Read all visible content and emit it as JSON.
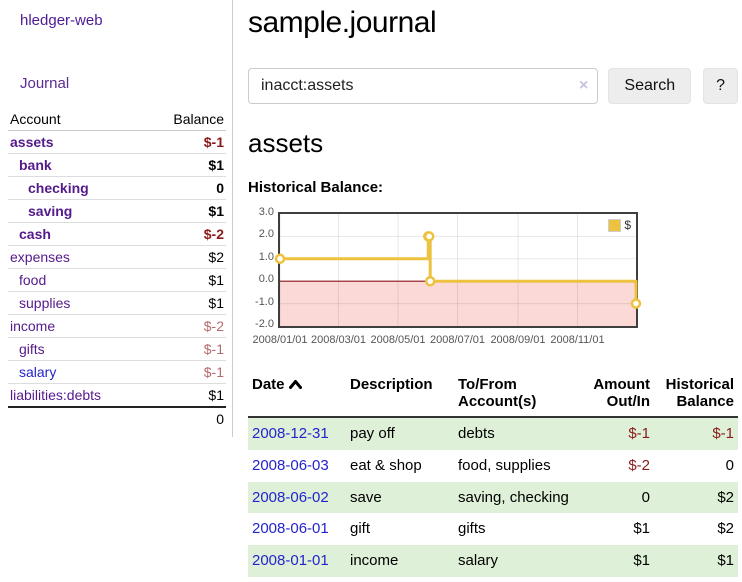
{
  "app": {
    "brand": "hledger-web"
  },
  "colors": {
    "link_purple": "#551a8b",
    "link_blue": "#2424cc",
    "negative_strong": "#8b1a1a",
    "negative_soft": "#b36b6b",
    "row_stripe_green": "#dff0d8",
    "chart_line_gold": "#edc240",
    "chart_negative_fill": "#fbd9d6",
    "chart_zero_line": "#8b1a1a"
  },
  "sidebar": {
    "nav": {
      "journal_label": "Journal"
    },
    "accounts_table": {
      "headers": {
        "account": "Account",
        "balance": "Balance"
      },
      "rows": [
        {
          "name": "assets",
          "depth": 1,
          "bold": true,
          "balance": "$-1",
          "amount_class": "neg"
        },
        {
          "name": "bank",
          "depth": 2,
          "bold": true,
          "balance": "$1",
          "amount_class": ""
        },
        {
          "name": "checking",
          "depth": 3,
          "bold": true,
          "balance": "0",
          "amount_class": ""
        },
        {
          "name": "saving",
          "depth": 3,
          "bold": true,
          "balance": "$1",
          "amount_class": ""
        },
        {
          "name": "cash",
          "depth": 2,
          "bold": true,
          "balance": "$-2",
          "amount_class": "neg"
        },
        {
          "name": "expenses",
          "depth": 1,
          "bold": false,
          "balance": "$2",
          "amount_class": ""
        },
        {
          "name": "food",
          "depth": 2,
          "bold": false,
          "balance": "$1",
          "amount_class": ""
        },
        {
          "name": "supplies",
          "depth": 2,
          "bold": false,
          "balance": "$1",
          "amount_class": ""
        },
        {
          "name": "income",
          "depth": 1,
          "bold": false,
          "balance": "$-2",
          "amount_class": "soft"
        },
        {
          "name": "gifts",
          "depth": 2,
          "bold": false,
          "balance": "$-1",
          "amount_class": "soft"
        },
        {
          "name": "salary",
          "depth": 2,
          "bold": false,
          "balance": "$-1",
          "amount_class": "soft",
          "link_class": "blue"
        },
        {
          "name": "liabilities:debts",
          "depth": 1,
          "bold": false,
          "balance": "$1",
          "amount_class": ""
        }
      ],
      "total": "0"
    }
  },
  "main": {
    "title": "sample.journal",
    "search": {
      "value": "inacct:assets",
      "clear_icon": "×",
      "button_label": "Search",
      "help_label": "?"
    },
    "account_heading": "assets",
    "chart_title": "Historical Balance:",
    "register": {
      "headers": {
        "date": "Date",
        "description": "Description",
        "accounts": "To/From Account(s)",
        "amount": "Amount Out/In",
        "balance": "Historical Balance"
      },
      "rows": [
        {
          "date": "2008-12-31",
          "description": "pay off",
          "accounts": "debts",
          "amount": "$-1",
          "balance": "$-1"
        },
        {
          "date": "2008-06-03",
          "description": "eat & shop",
          "accounts": "food, supplies",
          "amount": "$-2",
          "balance": "0"
        },
        {
          "date": "2008-06-02",
          "description": "save",
          "accounts": "saving, checking",
          "amount": "0",
          "balance": "$2"
        },
        {
          "date": "2008-06-01",
          "description": "gift",
          "accounts": "gifts",
          "amount": "$1",
          "balance": "$2"
        },
        {
          "date": "2008-01-01",
          "description": "income",
          "accounts": "salary",
          "amount": "$1",
          "balance": "$1"
        }
      ]
    }
  },
  "chart_data": {
    "type": "line",
    "title": "Historical Balance:",
    "step": true,
    "legend_position": "top-right",
    "x_domain": [
      "2008-01-01",
      "2008-12-31"
    ],
    "ylim": [
      -2,
      3
    ],
    "y_ticks": [
      3,
      2,
      1,
      0,
      -1,
      -2
    ],
    "x_ticks": [
      "2008/01/01",
      "2008/03/01",
      "2008/05/01",
      "2008/07/01",
      "2008/09/01",
      "2008/11/01"
    ],
    "negative_region_highlight": true,
    "series": [
      {
        "name": "$",
        "points": [
          {
            "date": "2008-01-01",
            "value": 1
          },
          {
            "date": "2008-06-01",
            "value": 2
          },
          {
            "date": "2008-06-02",
            "value": 2
          },
          {
            "date": "2008-06-03",
            "value": 0
          },
          {
            "date": "2008-12-31",
            "value": -1
          }
        ]
      }
    ]
  }
}
